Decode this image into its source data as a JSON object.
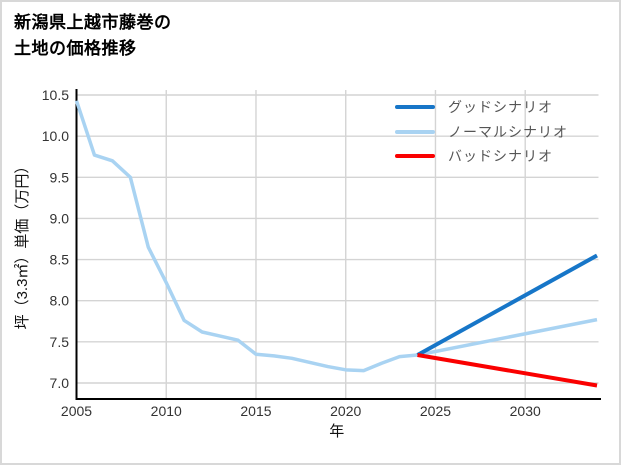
{
  "title": {
    "line1": "新潟県上越市藤巻の",
    "line2": "土地の価格推移"
  },
  "axes": {
    "x_label": "年",
    "y_label": "坪（3.3㎡）単価（万円）",
    "x_ticks": [
      2005,
      2010,
      2015,
      2020,
      2025,
      2030
    ],
    "y_ticks": [
      10.5,
      10.0,
      9.5,
      9.0,
      8.5,
      8.0,
      7.5,
      7.0
    ],
    "x_range": [
      2005,
      2034
    ],
    "y_range": [
      6.8,
      10.56
    ]
  },
  "legend": {
    "position": "top-right",
    "items": [
      {
        "label": "グッドシナリオ",
        "color": "#1776c8"
      },
      {
        "label": "ノーマルシナリオ",
        "color": "#a9d3f2"
      },
      {
        "label": "バッドシナリオ",
        "color": "#fa0000"
      }
    ]
  },
  "colors": {
    "good": "#1776c8",
    "normal": "#a9d3f2",
    "bad": "#fa0000",
    "grid": "#d4d4d4",
    "axis": "#000000",
    "tick_text": "#333333",
    "legend_text": "#555555"
  },
  "chart_data": {
    "type": "line",
    "title": "新潟県上越市藤巻の土地の価格推移",
    "xlabel": "年",
    "ylabel": "坪（3.3㎡）単価（万円）",
    "x_range": [
      2005,
      2034
    ],
    "ylim": [
      6.8,
      10.56
    ],
    "grid": true,
    "legend_position": "top-right",
    "series": [
      {
        "name": "ノーマルシナリオ",
        "color": "#a9d3f2",
        "x": [
          2005,
          2006,
          2007,
          2008,
          2009,
          2010,
          2011,
          2012,
          2013,
          2014,
          2015,
          2016,
          2017,
          2018,
          2019,
          2020,
          2021,
          2022,
          2023,
          2024,
          2034
        ],
        "y": [
          10.43,
          9.77,
          9.7,
          9.5,
          8.65,
          8.22,
          7.76,
          7.62,
          7.57,
          7.52,
          7.35,
          7.33,
          7.3,
          7.25,
          7.2,
          7.16,
          7.15,
          7.24,
          7.32,
          7.34,
          7.77
        ]
      },
      {
        "name": "グッドシナリオ",
        "color": "#1776c8",
        "x": [
          2024,
          2034
        ],
        "y": [
          7.34,
          8.55
        ]
      },
      {
        "name": "バッドシナリオ",
        "color": "#fa0000",
        "x": [
          2024,
          2034
        ],
        "y": [
          7.34,
          6.97
        ]
      }
    ]
  }
}
